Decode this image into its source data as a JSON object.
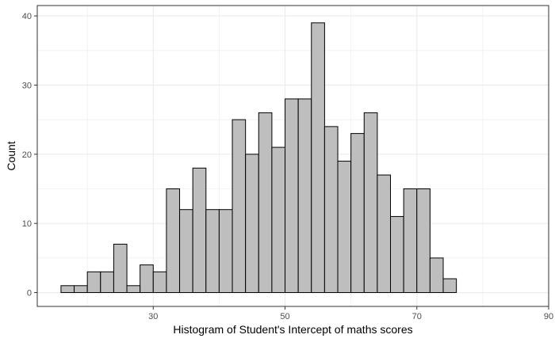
{
  "chart_data": {
    "type": "bar",
    "title": "",
    "xlabel": "Histogram of Student's Intercept of maths scores",
    "ylabel": "Count",
    "xlim": [
      12.4,
      90
    ],
    "ylim": [
      -2,
      41.5
    ],
    "x_ticks": [
      30,
      50,
      70,
      90
    ],
    "y_ticks": [
      0,
      10,
      20,
      30,
      40
    ],
    "minor_x_gridlines": [
      20,
      40,
      60,
      80
    ],
    "minor_y_gridlines": [
      5,
      15,
      25,
      35
    ],
    "grid": true,
    "bin_width": 2.0,
    "bin_start": 16.0,
    "values": [
      1,
      1,
      3,
      3,
      7,
      1,
      4,
      3,
      15,
      12,
      18,
      12,
      12,
      25,
      20,
      26,
      21,
      28,
      28,
      39,
      24,
      19,
      23,
      26,
      17,
      11,
      15,
      15,
      5,
      2
    ],
    "colors": {
      "bar_fill": "#bebebe",
      "bar_stroke": "#000000",
      "grid": "#ebebeb",
      "panel_border": "#333333",
      "tick_label": "#4d4d4d"
    }
  }
}
